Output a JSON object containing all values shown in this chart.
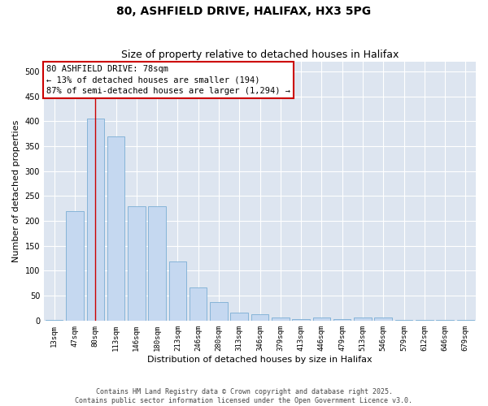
{
  "title1": "80, ASHFIELD DRIVE, HALIFAX, HX3 5PG",
  "title2": "Size of property relative to detached houses in Halifax",
  "xlabel": "Distribution of detached houses by size in Halifax",
  "ylabel": "Number of detached properties",
  "categories": [
    "13sqm",
    "47sqm",
    "80sqm",
    "113sqm",
    "146sqm",
    "180sqm",
    "213sqm",
    "246sqm",
    "280sqm",
    "313sqm",
    "346sqm",
    "379sqm",
    "413sqm",
    "446sqm",
    "479sqm",
    "513sqm",
    "546sqm",
    "579sqm",
    "612sqm",
    "646sqm",
    "679sqm"
  ],
  "values": [
    2,
    220,
    405,
    370,
    230,
    230,
    118,
    67,
    37,
    16,
    13,
    7,
    3,
    7,
    3,
    7,
    7,
    1,
    1,
    1,
    1
  ],
  "bar_color": "#c5d8f0",
  "bar_edge_color": "#7aadd4",
  "highlight_index": 2,
  "highlight_color": "#cc0000",
  "annotation_text": "80 ASHFIELD DRIVE: 78sqm\n← 13% of detached houses are smaller (194)\n87% of semi-detached houses are larger (1,294) →",
  "annotation_box_color": "#ffffff",
  "annotation_box_edge_color": "#cc0000",
  "ylim": [
    0,
    520
  ],
  "yticks": [
    0,
    50,
    100,
    150,
    200,
    250,
    300,
    350,
    400,
    450,
    500
  ],
  "background_color": "#dde5f0",
  "grid_color": "#ffffff",
  "fig_background": "#ffffff",
  "footer_text": "Contains HM Land Registry data © Crown copyright and database right 2025.\nContains public sector information licensed under the Open Government Licence v3.0.",
  "title_fontsize": 10,
  "subtitle_fontsize": 9,
  "axis_label_fontsize": 8,
  "tick_fontsize": 6.5,
  "annotation_fontsize": 7.5
}
